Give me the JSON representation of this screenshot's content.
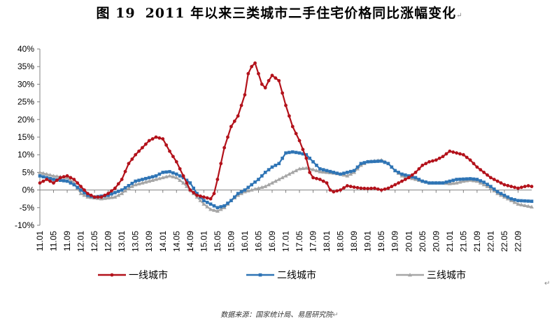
{
  "title": {
    "number": "图 19",
    "text": "2011 年以来三类城市二手住宅价格同比涨幅变化",
    "return_mark": "↵"
  },
  "source": {
    "text": "数据来源：国家统计局、易居研究院",
    "return_mark": "↵"
  },
  "trailing_mark": "↵",
  "colors": {
    "tier1": "#B3121B",
    "tier2": "#2E74B5",
    "tier3": "#A6A6A6",
    "axis": "#808080"
  },
  "chart_data": {
    "type": "line",
    "ylim": [
      -10,
      40
    ],
    "y_ticks": [
      "40%",
      "35%",
      "30%",
      "25%",
      "20%",
      "15%",
      "10%",
      "5%",
      "0%",
      "-5%",
      "-10%"
    ],
    "y_tick_values": [
      40,
      35,
      30,
      25,
      20,
      15,
      10,
      5,
      0,
      -5,
      -10
    ],
    "x_tick_labels": [
      "11.01",
      "11.05",
      "11.09",
      "12.01",
      "12.05",
      "12.09",
      "13.01",
      "13.05",
      "13.09",
      "14.01",
      "14.05",
      "14.09",
      "15.01",
      "15.05",
      "15.09",
      "16.01",
      "16.05",
      "16.09",
      "17.01",
      "17.05",
      "17.09",
      "18.01",
      "18.05",
      "18.09",
      "19.01",
      "19.05",
      "19.09",
      "20.01",
      "20.05",
      "20.09",
      "21.01",
      "21.05",
      "21.09",
      "22.01",
      "22.05",
      "22.09"
    ],
    "legend_position": "bottom",
    "series": [
      {
        "name": "一线城市",
        "color": "#B3121B",
        "marker": "circle",
        "anchors": [
          [
            0,
            2
          ],
          [
            2,
            3
          ],
          [
            4,
            2
          ],
          [
            6,
            3.5
          ],
          [
            8,
            4
          ],
          [
            10,
            3
          ],
          [
            12,
            1
          ],
          [
            14,
            -1
          ],
          [
            16,
            -2
          ],
          [
            18,
            -2
          ],
          [
            20,
            -1
          ],
          [
            22,
            0.5
          ],
          [
            24,
            3
          ],
          [
            26,
            7.5
          ],
          [
            28,
            10
          ],
          [
            30,
            12
          ],
          [
            32,
            14
          ],
          [
            34,
            15
          ],
          [
            36,
            14.5
          ],
          [
            38,
            11
          ],
          [
            40,
            8
          ],
          [
            42,
            4
          ],
          [
            44,
            0
          ],
          [
            46,
            -1.5
          ],
          [
            48,
            -2
          ],
          [
            50,
            -2.5
          ],
          [
            51,
            -1
          ],
          [
            52,
            3
          ],
          [
            54,
            12
          ],
          [
            56,
            18
          ],
          [
            58,
            21
          ],
          [
            60,
            27
          ],
          [
            61,
            33
          ],
          [
            62,
            35
          ],
          [
            63,
            36
          ],
          [
            64,
            33
          ],
          [
            65,
            30
          ],
          [
            66,
            29
          ],
          [
            67,
            31
          ],
          [
            68,
            32.5
          ],
          [
            70,
            31
          ],
          [
            72,
            24
          ],
          [
            74,
            18
          ],
          [
            76,
            14
          ],
          [
            78,
            9
          ],
          [
            79,
            5
          ],
          [
            80,
            3.5
          ],
          [
            82,
            3
          ],
          [
            84,
            2
          ],
          [
            85,
            0
          ],
          [
            86,
            -0.5
          ],
          [
            88,
            0
          ],
          [
            90,
            1.2
          ],
          [
            92,
            0.8
          ],
          [
            94,
            0.5
          ],
          [
            96,
            0.4
          ],
          [
            98,
            0.5
          ],
          [
            100,
            0
          ],
          [
            102,
            0.5
          ],
          [
            104,
            1.5
          ],
          [
            106,
            2.5
          ],
          [
            108,
            3.5
          ],
          [
            110,
            5
          ],
          [
            112,
            7
          ],
          [
            114,
            8
          ],
          [
            116,
            8.5
          ],
          [
            118,
            9.5
          ],
          [
            120,
            11
          ],
          [
            122,
            10.5
          ],
          [
            124,
            10
          ],
          [
            126,
            8.5
          ],
          [
            128,
            6.5
          ],
          [
            130,
            5
          ],
          [
            132,
            3.5
          ],
          [
            134,
            2.5
          ],
          [
            136,
            1.5
          ],
          [
            138,
            1
          ],
          [
            140,
            0.5
          ],
          [
            142,
            1
          ],
          [
            143,
            1.2
          ],
          [
            144,
            1
          ]
        ]
      },
      {
        "name": "二线城市",
        "color": "#2E74B5",
        "marker": "square",
        "anchors": [
          [
            0,
            4
          ],
          [
            4,
            3
          ],
          [
            8,
            2.5
          ],
          [
            10,
            1.5
          ],
          [
            12,
            0
          ],
          [
            14,
            -1.5
          ],
          [
            16,
            -2
          ],
          [
            20,
            -1.5
          ],
          [
            24,
            0
          ],
          [
            28,
            2.5
          ],
          [
            32,
            3.5
          ],
          [
            34,
            4
          ],
          [
            36,
            5
          ],
          [
            38,
            5.2
          ],
          [
            40,
            4.5
          ],
          [
            42,
            3.5
          ],
          [
            44,
            2
          ],
          [
            46,
            -1
          ],
          [
            48,
            -3
          ],
          [
            50,
            -4
          ],
          [
            52,
            -5
          ],
          [
            54,
            -4.5
          ],
          [
            56,
            -3
          ],
          [
            58,
            -1
          ],
          [
            60,
            0
          ],
          [
            62,
            1.5
          ],
          [
            64,
            3
          ],
          [
            66,
            5
          ],
          [
            68,
            6.5
          ],
          [
            70,
            7.5
          ],
          [
            72,
            10.5
          ],
          [
            74,
            10.8
          ],
          [
            76,
            10.5
          ],
          [
            78,
            10
          ],
          [
            80,
            8
          ],
          [
            82,
            6
          ],
          [
            84,
            5.5
          ],
          [
            86,
            5
          ],
          [
            88,
            4.5
          ],
          [
            90,
            5
          ],
          [
            92,
            5.5
          ],
          [
            94,
            7.5
          ],
          [
            96,
            8
          ],
          [
            100,
            8.2
          ],
          [
            102,
            7.5
          ],
          [
            104,
            5.5
          ],
          [
            106,
            4.5
          ],
          [
            108,
            4
          ],
          [
            110,
            3.5
          ],
          [
            112,
            2.5
          ],
          [
            114,
            2
          ],
          [
            118,
            2
          ],
          [
            120,
            2.5
          ],
          [
            122,
            3
          ],
          [
            126,
            3.2
          ],
          [
            128,
            3
          ],
          [
            130,
            2.2
          ],
          [
            132,
            1
          ],
          [
            134,
            -0.5
          ],
          [
            136,
            -1.5
          ],
          [
            138,
            -2.5
          ],
          [
            140,
            -3
          ],
          [
            144,
            -3.2
          ]
        ]
      },
      {
        "name": "三线城市",
        "color": "#A6A6A6",
        "marker": "triangle",
        "anchors": [
          [
            0,
            5
          ],
          [
            4,
            4
          ],
          [
            8,
            3.5
          ],
          [
            10,
            2
          ],
          [
            12,
            -1
          ],
          [
            14,
            -2
          ],
          [
            18,
            -2.5
          ],
          [
            22,
            -2
          ],
          [
            24,
            -1
          ],
          [
            26,
            0.5
          ],
          [
            28,
            1.5
          ],
          [
            32,
            2.5
          ],
          [
            34,
            3
          ],
          [
            36,
            3.5
          ],
          [
            38,
            4
          ],
          [
            40,
            3.5
          ],
          [
            42,
            2
          ],
          [
            44,
            0
          ],
          [
            46,
            -2
          ],
          [
            48,
            -4
          ],
          [
            50,
            -5.5
          ],
          [
            52,
            -6
          ],
          [
            54,
            -5
          ],
          [
            56,
            -3
          ],
          [
            58,
            -1.5
          ],
          [
            60,
            -0.5
          ],
          [
            62,
            0
          ],
          [
            64,
            0.5
          ],
          [
            66,
            1
          ],
          [
            68,
            2
          ],
          [
            70,
            3
          ],
          [
            72,
            4
          ],
          [
            74,
            5
          ],
          [
            76,
            6
          ],
          [
            78,
            6.2
          ],
          [
            80,
            5.8
          ],
          [
            82,
            5.2
          ],
          [
            84,
            5
          ],
          [
            86,
            4.8
          ],
          [
            88,
            4.5
          ],
          [
            90,
            4
          ],
          [
            92,
            5
          ],
          [
            94,
            7
          ],
          [
            96,
            8
          ],
          [
            100,
            8.5
          ],
          [
            102,
            7.5
          ],
          [
            104,
            5.5
          ],
          [
            106,
            4
          ],
          [
            108,
            3.5
          ],
          [
            110,
            3
          ],
          [
            112,
            2.5
          ],
          [
            114,
            2
          ],
          [
            118,
            2
          ],
          [
            120,
            1.8
          ],
          [
            122,
            2
          ],
          [
            124,
            2.5
          ],
          [
            126,
            2.8
          ],
          [
            128,
            2.5
          ],
          [
            130,
            1.5
          ],
          [
            132,
            0.5
          ],
          [
            134,
            -1
          ],
          [
            136,
            -2
          ],
          [
            138,
            -3
          ],
          [
            140,
            -4
          ],
          [
            144,
            -4.8
          ]
        ]
      }
    ]
  }
}
